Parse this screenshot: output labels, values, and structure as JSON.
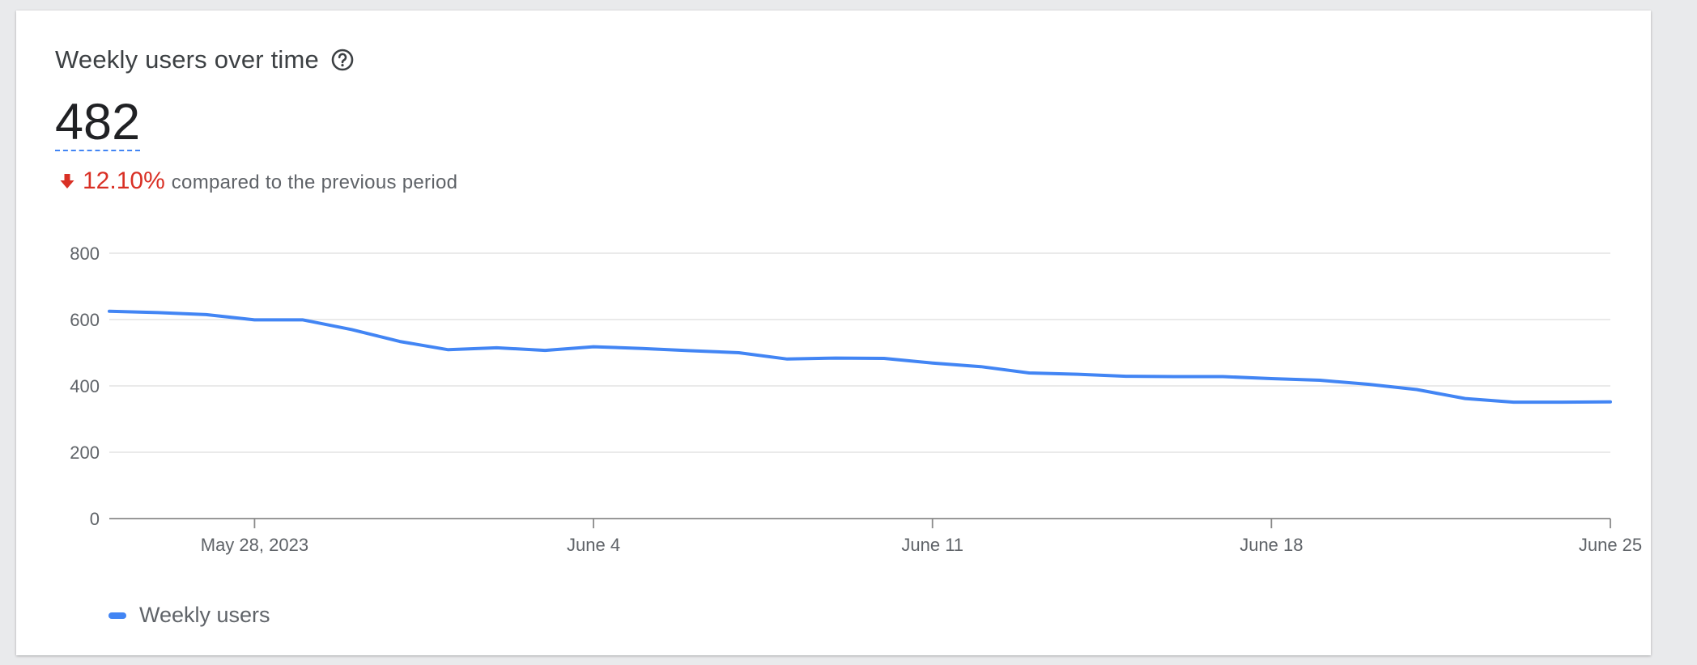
{
  "card": {
    "title": "Weekly users over time",
    "help_icon": "help-circle-icon",
    "metric_value": "482",
    "change_icon": "arrow-down-icon",
    "change_percent": "12.10%",
    "change_text": "compared to the previous period",
    "change_color": "#d93025"
  },
  "legend": {
    "label": "Weekly users",
    "color": "#4285f4"
  },
  "chart_data": {
    "type": "line",
    "title": "Weekly users over time",
    "xlabel": "",
    "ylabel": "",
    "ylim": [
      0,
      800
    ],
    "yticks": [
      0,
      200,
      400,
      600,
      800
    ],
    "xlim": [
      "2023-05-25",
      "2023-06-25"
    ],
    "xtick_labels": [
      {
        "date": "2023-05-28",
        "label": "May 28, 2023"
      },
      {
        "date": "2023-06-04",
        "label": "June 4"
      },
      {
        "date": "2023-06-11",
        "label": "June 11"
      },
      {
        "date": "2023-06-18",
        "label": "June 18"
      },
      {
        "date": "2023-06-25",
        "label": "June 25"
      }
    ],
    "grid": true,
    "legend_position": "bottom-left",
    "series": [
      {
        "name": "Weekly users",
        "color": "#4285f4",
        "x": [
          "2023-05-25",
          "2023-05-26",
          "2023-05-27",
          "2023-05-28",
          "2023-05-29",
          "2023-05-30",
          "2023-05-31",
          "2023-06-01",
          "2023-06-02",
          "2023-06-03",
          "2023-06-04",
          "2023-06-05",
          "2023-06-06",
          "2023-06-07",
          "2023-06-08",
          "2023-06-09",
          "2023-06-10",
          "2023-06-11",
          "2023-06-12",
          "2023-06-13",
          "2023-06-14",
          "2023-06-15",
          "2023-06-16",
          "2023-06-17",
          "2023-06-18",
          "2023-06-19",
          "2023-06-20",
          "2023-06-21",
          "2023-06-22",
          "2023-06-23",
          "2023-06-24",
          "2023-06-25"
        ],
        "values": [
          625,
          621,
          615,
          599,
          599,
          570,
          534,
          509,
          515,
          507,
          518,
          513,
          506,
          500,
          481,
          484,
          483,
          469,
          458,
          439,
          435,
          429,
          428,
          428,
          422,
          417,
          405,
          389,
          362,
          351,
          351,
          352
        ]
      }
    ]
  }
}
